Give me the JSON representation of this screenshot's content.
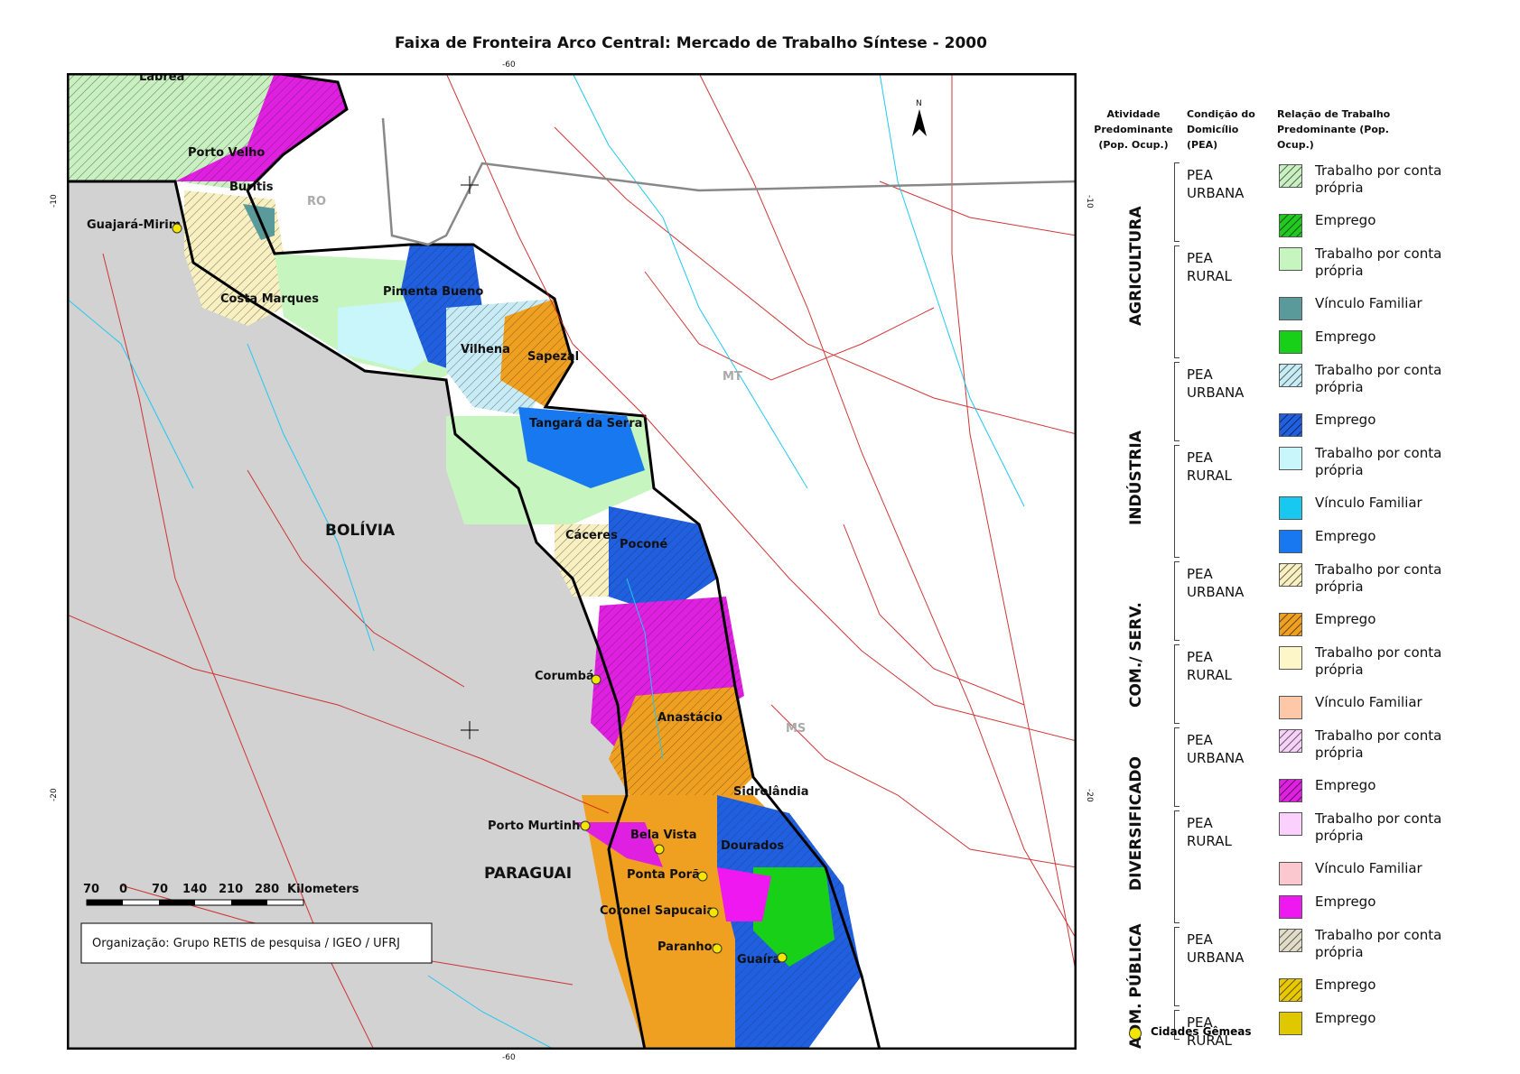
{
  "title": "Faixa de Fronteira Arco Central: Mercado de Trabalho Síntese -  2000",
  "coords": {
    "top": "-60",
    "bottom": "-60",
    "left_upper": "-10",
    "right_upper": "-10",
    "left_lower": "-20",
    "right_lower": "-20"
  },
  "map": {
    "states": [
      "RO",
      "MT",
      "MS"
    ],
    "countries": [
      "BOLÍVIA",
      "PARAGUAI"
    ],
    "places": [
      "Lábrea",
      "Porto Velho",
      "Buritis",
      "Guajará-Mirim",
      "Costa Marques",
      "Pimenta Bueno",
      "Vilhena",
      "Sapezal",
      "Tangará da Serra",
      "Cáceres",
      "Poconé",
      "Corumbá",
      "Anastácio",
      "Sidrolândia",
      "Porto Murtinho",
      "Bela Vista",
      "Dourados",
      "Ponta Porã",
      "Coronel Sapucaia",
      "Paranhos",
      "Guaíra"
    ],
    "twin_city_color": "#f5e600",
    "north_arrow_label": "N"
  },
  "scale_bar": {
    "ticks": [
      "70",
      "0",
      "70",
      "140",
      "210",
      "280"
    ],
    "unit": "Kilometers"
  },
  "credit": "Organização: Grupo RETIS de pesquisa / IGEO / UFRJ",
  "legend": {
    "headers": [
      "Atividade Predominante (Pop. Ocup.)",
      "Condição do Domicílio (PEA)",
      "Relação de Trabalho Predominante (Pop. Ocup.)"
    ],
    "categories": [
      {
        "name": "AGRICULTURA",
        "groups": [
          {
            "pea": "PEA URBANA",
            "items": [
              {
                "label": "Trabalho por conta própria",
                "color": "#c8f0c0",
                "hatch": true
              },
              {
                "label": "Emprego",
                "color": "#20c820",
                "hatch": true
              }
            ]
          },
          {
            "pea": "PEA RURAL",
            "items": [
              {
                "label": "Trabalho por conta própria",
                "color": "#c6f5c0",
                "hatch": false
              },
              {
                "label": "Vínculo Familiar",
                "color": "#5a9a9a",
                "hatch": false
              },
              {
                "label": "Emprego",
                "color": "#18d018",
                "hatch": false
              }
            ]
          }
        ]
      },
      {
        "name": "INDÚSTRIA",
        "groups": [
          {
            "pea": "PEA URBANA",
            "items": [
              {
                "label": "Trabalho por conta própria",
                "color": "#c8ecf5",
                "hatch": true
              },
              {
                "label": "Emprego",
                "color": "#2060e0",
                "hatch": true
              }
            ]
          },
          {
            "pea": "PEA RURAL",
            "items": [
              {
                "label": "Trabalho por conta própria",
                "color": "#c8f6fb",
                "hatch": false
              },
              {
                "label": "Vínculo Familiar",
                "color": "#18c8f0",
                "hatch": false
              },
              {
                "label": "Emprego",
                "color": "#1878f0",
                "hatch": false
              }
            ]
          }
        ]
      },
      {
        "name": "COM./ SERV.",
        "groups": [
          {
            "pea": "PEA URBANA",
            "items": [
              {
                "label": "Trabalho por conta própria",
                "color": "#f8f0c0",
                "hatch": true
              },
              {
                "label": "Emprego",
                "color": "#f0a020",
                "hatch": true
              }
            ]
          },
          {
            "pea": "PEA RURAL",
            "items": [
              {
                "label": "Trabalho por conta própria",
                "color": "#fcf6c8",
                "hatch": false
              },
              {
                "label": "Vínculo Familiar",
                "color": "#fcc8a8",
                "hatch": false
              }
            ]
          }
        ]
      },
      {
        "name": "DIVERSIFICADO",
        "groups": [
          {
            "pea": "PEA URBANA",
            "items": [
              {
                "label": "Trabalho por conta própria",
                "color": "#f6d0f6",
                "hatch": true
              },
              {
                "label": "Emprego",
                "color": "#e020e0",
                "hatch": true
              }
            ]
          },
          {
            "pea": "PEA RURAL",
            "items": [
              {
                "label": "Trabalho por conta própria",
                "color": "#fcd0fc",
                "hatch": false
              },
              {
                "label": "Vínculo Familiar",
                "color": "#fcc8d0",
                "hatch": false
              },
              {
                "label": "Emprego",
                "color": "#f018f0",
                "hatch": false
              }
            ]
          }
        ]
      },
      {
        "name": "ADM. PÚBLICA",
        "groups": [
          {
            "pea": "PEA URBANA",
            "items": [
              {
                "label": "Trabalho por conta própria",
                "color": "#e0dcc8",
                "hatch": true
              },
              {
                "label": "Emprego",
                "color": "#e8c800",
                "hatch": true
              }
            ]
          },
          {
            "pea": "PEA RURAL",
            "items": [
              {
                "label": "Emprego",
                "color": "#e0c800",
                "hatch": false
              }
            ]
          }
        ]
      }
    ],
    "twin_cities_label": "Cidades Gêmeas"
  }
}
